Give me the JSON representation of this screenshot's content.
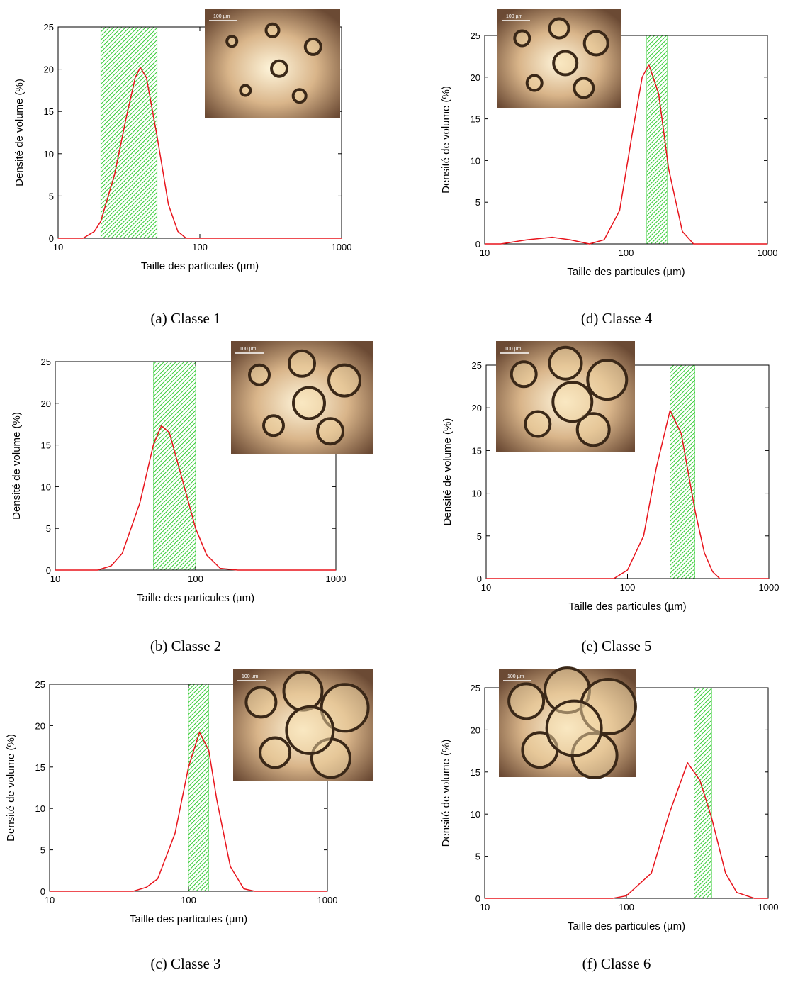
{
  "chart_data": [
    {
      "type": "line",
      "caption": "(a) Classe 1",
      "xlabel": "Taille des particules (µm)",
      "ylabel": "Densité de volume (%)",
      "log_x": true,
      "xlim": [
        10,
        1000
      ],
      "xticks": [
        10,
        100,
        1000
      ],
      "ylim": [
        0,
        25
      ],
      "yticks": [
        0,
        5,
        10,
        15,
        20,
        25
      ],
      "band": [
        20,
        50
      ],
      "band_color": "#33cc33",
      "inset_label": "100 µm",
      "series": [
        {
          "color": "#e8141c",
          "x": [
            10,
            15,
            18,
            20,
            25,
            30,
            35,
            38,
            42,
            50,
            60,
            70,
            80,
            100,
            1000
          ],
          "values": [
            0,
            0,
            0.8,
            2,
            7.5,
            14,
            19,
            20.2,
            19,
            12,
            4,
            0.8,
            0,
            0,
            0
          ]
        }
      ]
    },
    {
      "type": "line",
      "caption": "(d) Classe 4",
      "xlabel": "Taille des particules (µm)",
      "ylabel": "Densité de volume (%)",
      "log_x": true,
      "xlim": [
        10,
        1000
      ],
      "xticks": [
        10,
        100,
        1000
      ],
      "ylim": [
        0,
        25
      ],
      "yticks": [
        0,
        5,
        10,
        15,
        20,
        25
      ],
      "band": [
        140,
        195
      ],
      "band_color": "#33cc33",
      "inset_label": "100 µm",
      "series": [
        {
          "color": "#e8141c",
          "x": [
            10,
            13,
            20,
            30,
            40,
            55,
            70,
            90,
            110,
            130,
            145,
            170,
            200,
            250,
            300,
            1000
          ],
          "values": [
            0,
            0,
            0.5,
            0.8,
            0.5,
            0,
            0.5,
            4,
            13,
            20,
            21.5,
            18,
            9,
            1.5,
            0,
            0
          ]
        }
      ]
    },
    {
      "type": "line",
      "caption": "(b) Classe 2",
      "xlabel": "Taille des particules (µm)",
      "ylabel": "Densité de volume (%)",
      "log_x": true,
      "xlim": [
        10,
        1000
      ],
      "xticks": [
        10,
        100,
        1000
      ],
      "ylim": [
        0,
        25
      ],
      "yticks": [
        0,
        5,
        10,
        15,
        20,
        25
      ],
      "band": [
        50,
        100
      ],
      "band_color": "#33cc33",
      "inset_label": "100 µm",
      "series": [
        {
          "color": "#e8141c",
          "x": [
            10,
            20,
            25,
            30,
            40,
            50,
            57,
            65,
            80,
            100,
            120,
            150,
            200,
            1000
          ],
          "values": [
            0,
            0,
            0.5,
            2,
            8,
            15,
            17.3,
            16.5,
            11,
            5,
            1.8,
            0.2,
            0,
            0
          ]
        }
      ]
    },
    {
      "type": "line",
      "caption": "(e) Classe 5",
      "xlabel": "Taille des particules (µm)",
      "ylabel": "Densité de volume (%)",
      "log_x": true,
      "xlim": [
        10,
        1000
      ],
      "xticks": [
        10,
        100,
        1000
      ],
      "ylim": [
        0,
        25
      ],
      "yticks": [
        0,
        5,
        10,
        15,
        20,
        25
      ],
      "band": [
        200,
        300
      ],
      "band_color": "#33cc33",
      "inset_label": "100 µm",
      "series": [
        {
          "color": "#e8141c",
          "x": [
            10,
            80,
            100,
            130,
            160,
            200,
            240,
            300,
            350,
            400,
            450,
            1000
          ],
          "values": [
            0,
            0,
            1,
            5,
            13,
            19.7,
            17,
            8,
            3,
            0.8,
            0,
            0
          ]
        }
      ]
    },
    {
      "type": "line",
      "caption": "(c) Classe 3",
      "xlabel": "Taille des particules (µm)",
      "ylabel": "Densité de volume (%)",
      "log_x": true,
      "xlim": [
        10,
        1000
      ],
      "xticks": [
        10,
        100,
        1000
      ],
      "ylim": [
        0,
        25
      ],
      "yticks": [
        0,
        5,
        10,
        15,
        20,
        25
      ],
      "band": [
        100,
        140
      ],
      "band_color": "#33cc33",
      "inset_label": "100 µm",
      "series": [
        {
          "color": "#e8141c",
          "x": [
            10,
            40,
            50,
            60,
            80,
            100,
            120,
            140,
            160,
            200,
            250,
            300,
            1000
          ],
          "values": [
            0,
            0,
            0.5,
            1.5,
            7,
            15,
            19.2,
            17,
            11,
            3,
            0.3,
            0,
            0
          ]
        }
      ]
    },
    {
      "type": "line",
      "caption": "(f) Classe 6",
      "xlabel": "Taille des particules (µm)",
      "ylabel": "Densité de volume (%)",
      "log_x": true,
      "xlim": [
        10,
        1000
      ],
      "xticks": [
        10,
        100,
        1000
      ],
      "ylim": [
        0,
        25
      ],
      "yticks": [
        0,
        5,
        10,
        15,
        20,
        25
      ],
      "band": [
        300,
        400
      ],
      "band_color": "#33cc33",
      "inset_label": "100 µm",
      "series": [
        {
          "color": "#e8141c",
          "x": [
            10,
            80,
            100,
            150,
            200,
            270,
            330,
            400,
            500,
            600,
            800,
            1000
          ],
          "values": [
            0,
            0,
            0.3,
            3,
            10,
            16.1,
            14,
            9.5,
            3,
            0.7,
            0,
            0
          ]
        }
      ]
    }
  ]
}
